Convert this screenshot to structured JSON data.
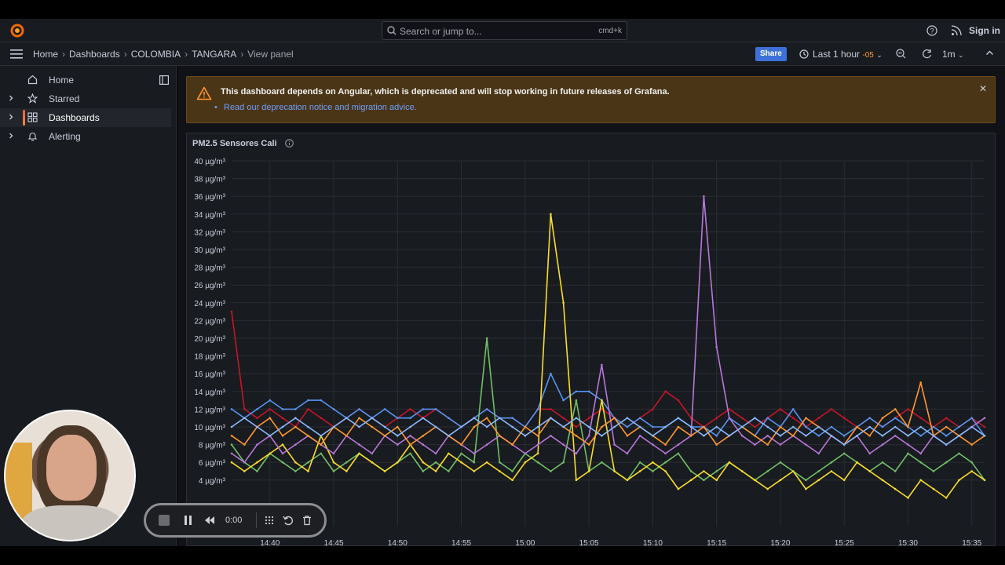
{
  "topbar": {
    "search_placeholder": "Search or jump to...",
    "search_shortcut": "cmd+k",
    "signin_label": "Sign in"
  },
  "breadcrumb": [
    "Home",
    "Dashboards",
    "COLOMBIA",
    "TANGARA",
    "View panel"
  ],
  "toolbar": {
    "share_label": "Share",
    "time_range": "Last 1 hour",
    "timezone": "-05",
    "refresh_interval": "1m"
  },
  "sidebar": {
    "items": [
      {
        "label": "Home",
        "icon": "home-icon"
      },
      {
        "label": "Starred",
        "icon": "star-icon"
      },
      {
        "label": "Dashboards",
        "icon": "apps-icon"
      },
      {
        "label": "Alerting",
        "icon": "bell-icon"
      }
    ]
  },
  "alert": {
    "message": "This dashboard depends on Angular, which is deprecated and will stop working in future releases of Grafana.",
    "link": "Read our deprecation notice and migration advice."
  },
  "panel": {
    "title": "PM2.5 Sensores Cali"
  },
  "recorder": {
    "time": "0:00"
  },
  "chart_data": {
    "type": "line",
    "title": "PM2.5 Sensores Cali",
    "xlabel": "",
    "ylabel": "",
    "yunit": "µg/m³",
    "ylim": [
      0,
      40
    ],
    "yticks": [
      4,
      6,
      8,
      10,
      12,
      14,
      16,
      18,
      20,
      22,
      24,
      26,
      28,
      30,
      32,
      34,
      36,
      38,
      40
    ],
    "xticks": [
      "14:40",
      "14:45",
      "14:50",
      "14:55",
      "15:00",
      "15:05",
      "15:10",
      "15:15",
      "15:20",
      "15:25",
      "15:30",
      "15:35"
    ],
    "xrange": [
      "14:37",
      "15:36"
    ],
    "grid": true,
    "series": [
      {
        "color": "#c4162a",
        "values": [
          23,
          12,
          11,
          12,
          11,
          10,
          12,
          11,
          10,
          11,
          12,
          11,
          10,
          11,
          12,
          11,
          12,
          11,
          10,
          11,
          12,
          11,
          11,
          10,
          12,
          12,
          11,
          10,
          11,
          12,
          11,
          10,
          11,
          12,
          14,
          13,
          11,
          10,
          11,
          12,
          11,
          10,
          11,
          12,
          11,
          10,
          11,
          12,
          11,
          10,
          11,
          10,
          11,
          12,
          11,
          10,
          11,
          10,
          11,
          10
        ]
      },
      {
        "color": "#5794f2",
        "values": [
          12,
          11,
          12,
          13,
          12,
          12,
          13,
          13,
          12,
          11,
          12,
          11,
          12,
          11,
          11,
          12,
          12,
          11,
          10,
          11,
          12,
          11,
          11,
          10,
          12,
          16,
          13,
          14,
          14,
          13,
          11,
          10,
          11,
          10,
          10,
          11,
          10,
          10,
          9,
          11,
          10,
          9,
          11,
          10,
          12,
          10,
          9,
          10,
          9,
          10,
          11,
          10,
          11,
          10,
          9,
          10,
          9,
          10,
          11,
          9
        ]
      },
      {
        "color": "#73bf69",
        "values": [
          8,
          6,
          5,
          7,
          6,
          5,
          6,
          7,
          5,
          6,
          7,
          6,
          5,
          6,
          7,
          5,
          6,
          5,
          7,
          6,
          20,
          6,
          5,
          7,
          6,
          5,
          6,
          13,
          5,
          6,
          5,
          4,
          6,
          5,
          6,
          7,
          5,
          4,
          5,
          6,
          5,
          4,
          5,
          6,
          5,
          4,
          5,
          6,
          7,
          6,
          5,
          6,
          5,
          7,
          6,
          5,
          6,
          7,
          6,
          4
        ]
      },
      {
        "color": "#fade2a",
        "values": [
          6,
          5,
          6,
          7,
          8,
          6,
          5,
          9,
          6,
          5,
          7,
          6,
          5,
          6,
          8,
          6,
          5,
          7,
          6,
          5,
          6,
          5,
          4,
          6,
          7,
          34,
          24,
          4,
          5,
          13,
          5,
          4,
          5,
          6,
          5,
          3,
          4,
          5,
          4,
          6,
          5,
          4,
          3,
          4,
          5,
          3,
          4,
          5,
          4,
          6,
          5,
          4,
          3,
          2,
          4,
          3,
          2,
          4,
          5,
          4
        ]
      },
      {
        "color": "#b877d9",
        "values": [
          7,
          6,
          8,
          9,
          7,
          8,
          9,
          8,
          7,
          9,
          8,
          7,
          9,
          8,
          9,
          8,
          7,
          9,
          8,
          7,
          8,
          9,
          8,
          7,
          8,
          9,
          8,
          7,
          9,
          17,
          8,
          7,
          9,
          8,
          7,
          8,
          9,
          36,
          19,
          11,
          9,
          8,
          9,
          8,
          9,
          8,
          7,
          9,
          8,
          9,
          7,
          8,
          9,
          8,
          7,
          9,
          8,
          9,
          10,
          11
        ]
      },
      {
        "color": "#ff9830",
        "values": [
          9,
          8,
          10,
          11,
          9,
          10,
          9,
          8,
          10,
          9,
          11,
          10,
          9,
          10,
          8,
          9,
          10,
          9,
          8,
          10,
          11,
          9,
          8,
          10,
          9,
          11,
          10,
          9,
          8,
          10,
          11,
          9,
          10,
          9,
          8,
          10,
          9,
          10,
          8,
          9,
          10,
          9,
          8,
          10,
          9,
          11,
          10,
          9,
          8,
          10,
          9,
          11,
          12,
          10,
          15,
          9,
          10,
          9,
          8,
          9
        ]
      },
      {
        "color": "#8ab8ff",
        "values": [
          10,
          11,
          10,
          9,
          10,
          11,
          10,
          9,
          10,
          11,
          10,
          11,
          10,
          9,
          10,
          11,
          10,
          9,
          10,
          11,
          10,
          11,
          10,
          9,
          10,
          11,
          10,
          11,
          10,
          9,
          10,
          11,
          10,
          9,
          10,
          11,
          10,
          9,
          10,
          9,
          10,
          11,
          10,
          9,
          10,
          9,
          10,
          9,
          8,
          9,
          10,
          9,
          10,
          9,
          10,
          9,
          8,
          9,
          10,
          9
        ]
      }
    ]
  }
}
